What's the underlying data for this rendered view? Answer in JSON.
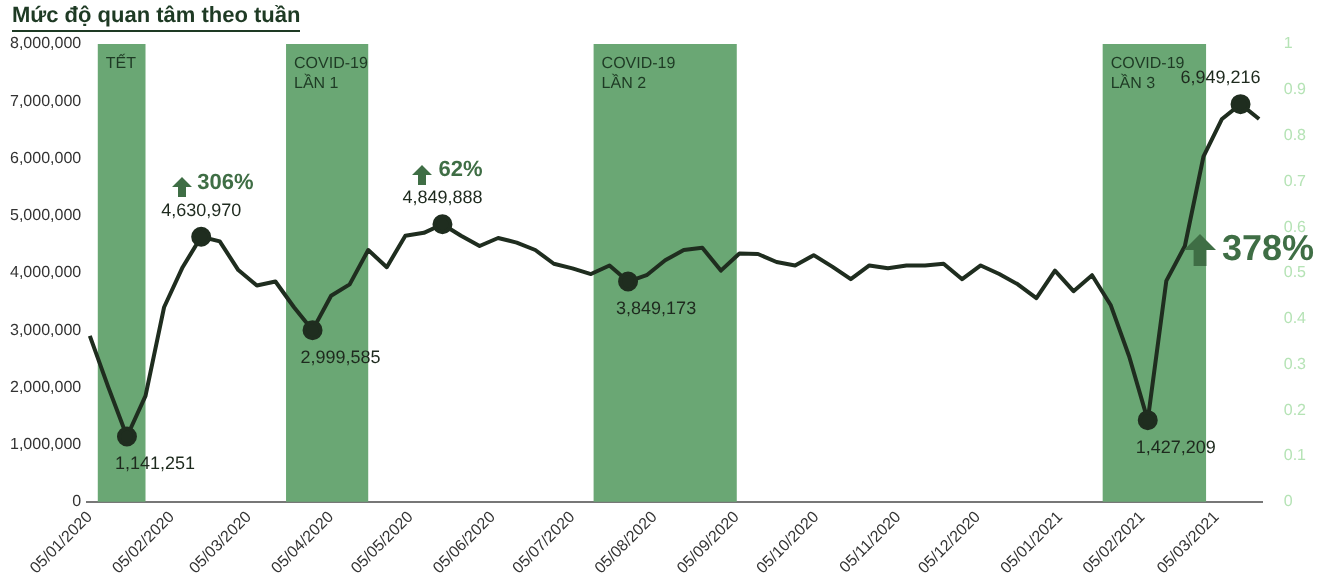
{
  "chart_data": {
    "type": "line",
    "title": "Mức độ quan tâm theo tuần",
    "x": [
      "2020-01-05",
      "2020-01-12",
      "2020-01-19",
      "2020-01-26",
      "2020-02-02",
      "2020-02-09",
      "2020-02-16",
      "2020-02-23",
      "2020-03-01",
      "2020-03-08",
      "2020-03-15",
      "2020-03-22",
      "2020-03-29",
      "2020-04-05",
      "2020-04-12",
      "2020-04-19",
      "2020-04-26",
      "2020-05-03",
      "2020-05-10",
      "2020-05-17",
      "2020-05-24",
      "2020-05-31",
      "2020-06-07",
      "2020-06-14",
      "2020-06-21",
      "2020-06-28",
      "2020-07-05",
      "2020-07-12",
      "2020-07-19",
      "2020-07-26",
      "2020-08-02",
      "2020-08-09",
      "2020-08-16",
      "2020-08-23",
      "2020-08-30",
      "2020-09-06",
      "2020-09-13",
      "2020-09-20",
      "2020-09-27",
      "2020-10-04",
      "2020-10-11",
      "2020-10-18",
      "2020-10-25",
      "2020-11-01",
      "2020-11-08",
      "2020-11-15",
      "2020-11-22",
      "2020-11-29",
      "2020-12-06",
      "2020-12-13",
      "2020-12-20",
      "2020-12-27",
      "2021-01-03",
      "2021-01-10",
      "2021-01-17",
      "2021-01-24",
      "2021-01-31",
      "2021-02-07",
      "2021-02-14",
      "2021-02-21",
      "2021-02-28",
      "2021-03-07",
      "2021-03-14",
      "2021-03-21"
    ],
    "series": [
      {
        "color": "#1f2d1f",
        "values": [
          2900000,
          2000000,
          1141251,
          1850000,
          3400000,
          4100000,
          4630970,
          4550000,
          4050000,
          3780000,
          3850000,
          3400000,
          2999585,
          3600000,
          3800000,
          4400000,
          4100000,
          4650000,
          4700000,
          4849888,
          4650000,
          4470000,
          4610000,
          4530000,
          4400000,
          4160000,
          4080000,
          3980000,
          4130000,
          3849173,
          3960000,
          4220000,
          4400000,
          4440000,
          4040000,
          4340000,
          4330000,
          4190000,
          4130000,
          4310000,
          4110000,
          3890000,
          4130000,
          4080000,
          4130000,
          4130000,
          4160000,
          3890000,
          4130000,
          3980000,
          3800000,
          3560000,
          4040000,
          3680000,
          3960000,
          3440000,
          2540000,
          1427209,
          3860000,
          4470000,
          6030000,
          6690000,
          6949216,
          6690000
        ]
      }
    ],
    "xlim": [
      "2020-01-04",
      "2021-03-22"
    ],
    "xticks": [
      {
        "value": "2020-01-05",
        "label": "05/01/2020"
      },
      {
        "value": "2020-02-05",
        "label": "05/02/2020"
      },
      {
        "value": "2020-03-05",
        "label": "05/03/2020"
      },
      {
        "value": "2020-04-05",
        "label": "05/04/2020"
      },
      {
        "value": "2020-05-05",
        "label": "05/05/2020"
      },
      {
        "value": "2020-06-05",
        "label": "05/06/2020"
      },
      {
        "value": "2020-07-05",
        "label": "05/07/2020"
      },
      {
        "value": "2020-08-05",
        "label": "05/08/2020"
      },
      {
        "value": "2020-09-05",
        "label": "05/09/2020"
      },
      {
        "value": "2020-10-05",
        "label": "05/10/2020"
      },
      {
        "value": "2020-11-05",
        "label": "05/11/2020"
      },
      {
        "value": "2020-12-05",
        "label": "05/12/2020"
      },
      {
        "value": "2021-01-05",
        "label": "05/01/2021"
      },
      {
        "value": "2021-02-05",
        "label": "05/02/2021"
      },
      {
        "value": "2021-03-05",
        "label": "05/03/2021"
      }
    ],
    "ylim": [
      0,
      8000000
    ],
    "yticks": [
      {
        "value": 0,
        "label": "0"
      },
      {
        "value": 1000000,
        "label": "1,000,000"
      },
      {
        "value": 2000000,
        "label": "2,000,000"
      },
      {
        "value": 3000000,
        "label": "3,000,000"
      },
      {
        "value": 4000000,
        "label": "4,000,000"
      },
      {
        "value": 5000000,
        "label": "5,000,000"
      },
      {
        "value": 6000000,
        "label": "6,000,000"
      },
      {
        "value": 7000000,
        "label": "7,000,000"
      },
      {
        "value": 8000000,
        "label": "8,000,000"
      }
    ],
    "y2lim": [
      0,
      1
    ],
    "y2ticks": [
      0,
      0.1,
      0.2,
      0.3,
      0.4,
      0.5,
      0.6,
      0.7,
      0.8,
      0.9,
      1
    ],
    "bands": [
      {
        "axis": "x",
        "from": "2020-01-08",
        "to": "2020-01-26",
        "label": "TẾT",
        "color": "#6aa774"
      },
      {
        "axis": "x",
        "from": "2020-03-19",
        "to": "2020-04-19",
        "label": "COVID-19\nLẦN 1",
        "color": "#6aa774"
      },
      {
        "axis": "x",
        "from": "2020-07-13",
        "to": "2020-09-05",
        "label": "COVID-19\nLẦN 2",
        "color": "#6aa774"
      },
      {
        "axis": "x",
        "from": "2021-01-21",
        "to": "2021-03-01",
        "label": "COVID-19\nLẦN 3",
        "color": "#6aa774"
      }
    ],
    "annotations": [
      {
        "text": "1,141,251",
        "x": "2020-01-19",
        "y": 1141251
      },
      {
        "text": "4,630,970",
        "x": "2020-02-16",
        "y": 4630970
      },
      "306%",
      {
        "text": "2,999,585",
        "x": "2020-03-29",
        "y": 2999585
      },
      {
        "text": "4,849,888",
        "x": "2020-05-17",
        "y": 4849888
      },
      "62%",
      {
        "text": "3,849,173",
        "x": "2020-07-26",
        "y": 3849173
      },
      {
        "text": "1,427,209",
        "x": "2021-02-07",
        "y": 1427209
      },
      {
        "text": "6,949,216",
        "x": "2021-03-14",
        "y": 6949216
      },
      "378%"
    ],
    "grid": false,
    "legend": false
  }
}
